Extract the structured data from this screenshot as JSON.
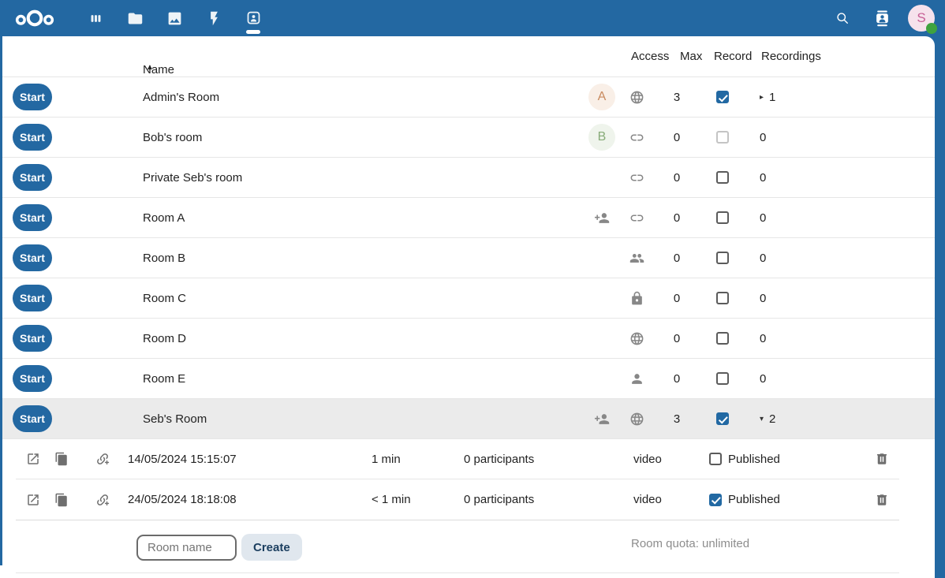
{
  "colors": {
    "topbar_blue": "#2368a2",
    "checkbox_blue": "#2269a3",
    "row_highlight": "#ebebeb",
    "status_green": "#3fa33f"
  },
  "topbar": {
    "app_icons": [
      "dashboard",
      "files",
      "photos",
      "activity",
      "bbb"
    ],
    "active_app": "bbb",
    "right_icons": [
      "search-icon",
      "contacts-icon"
    ],
    "user_avatar": {
      "letter": "S"
    }
  },
  "table": {
    "headers": {
      "name": "Name",
      "access": "Access",
      "max": "Max",
      "record": "Record",
      "recordings": "Recordings"
    },
    "sort_indicator": "▲",
    "start_label": "Start",
    "rooms": [
      {
        "name": "Admin's Room",
        "avatar": {
          "letter": "A",
          "bg": "#f9efe7",
          "color": "#c98a5e"
        },
        "sub_icon": null,
        "access_icon": "globe",
        "max": "3",
        "record": true,
        "record_disabled": false,
        "recordings": "1",
        "expanded": false,
        "has_recordings": true,
        "has_actions": true,
        "highlight": false
      },
      {
        "name": "Bob's room",
        "avatar": {
          "letter": "B",
          "bg": "#eff4ec",
          "color": "#87ab78"
        },
        "sub_icon": null,
        "access_icon": "link",
        "max": "0",
        "record": false,
        "record_disabled": true,
        "recordings": "0",
        "expanded": false,
        "has_recordings": false,
        "has_actions": false,
        "highlight": false
      },
      {
        "name": "Private Seb's room",
        "avatar": null,
        "sub_icon": null,
        "access_icon": "link",
        "max": "0",
        "record": false,
        "record_disabled": false,
        "recordings": "0",
        "expanded": false,
        "has_recordings": false,
        "has_actions": true,
        "highlight": false
      },
      {
        "name": "Room A",
        "avatar": null,
        "sub_icon": "person-plus",
        "access_icon": "link",
        "max": "0",
        "record": false,
        "record_disabled": false,
        "recordings": "0",
        "expanded": false,
        "has_recordings": false,
        "has_actions": true,
        "highlight": false
      },
      {
        "name": "Room B",
        "avatar": null,
        "sub_icon": null,
        "access_icon": "people",
        "max": "0",
        "record": false,
        "record_disabled": false,
        "recordings": "0",
        "expanded": false,
        "has_recordings": false,
        "has_actions": true,
        "highlight": false
      },
      {
        "name": "Room C",
        "avatar": null,
        "sub_icon": null,
        "access_icon": "lock",
        "max": "0",
        "record": false,
        "record_disabled": false,
        "recordings": "0",
        "expanded": false,
        "has_recordings": false,
        "has_actions": true,
        "highlight": false
      },
      {
        "name": "Room D",
        "avatar": null,
        "sub_icon": null,
        "access_icon": "globe",
        "max": "0",
        "record": false,
        "record_disabled": false,
        "recordings": "0",
        "expanded": false,
        "has_recordings": false,
        "has_actions": true,
        "highlight": false
      },
      {
        "name": "Room E",
        "avatar": null,
        "sub_icon": null,
        "access_icon": "person",
        "max": "0",
        "record": false,
        "record_disabled": false,
        "recordings": "0",
        "expanded": false,
        "has_recordings": false,
        "has_actions": true,
        "highlight": false
      },
      {
        "name": "Seb's Room",
        "avatar": null,
        "sub_icon": "person-plus",
        "access_icon": "globe",
        "max": "3",
        "record": true,
        "record_disabled": false,
        "recordings": "2",
        "expanded": true,
        "has_recordings": true,
        "has_actions": true,
        "highlight": true
      }
    ]
  },
  "recordings": {
    "published_label": "Published",
    "rows": [
      {
        "date": "14/05/2024 15:15:07",
        "duration": "1 min",
        "participants": "0 participants",
        "type": "video",
        "published": false
      },
      {
        "date": "24/05/2024 18:18:08",
        "duration": "< 1 min",
        "participants": "0 participants",
        "type": "video",
        "published": true
      }
    ]
  },
  "footer": {
    "room_name_placeholder": "Room name",
    "create_label": "Create",
    "quota": "Room quota: unlimited"
  }
}
